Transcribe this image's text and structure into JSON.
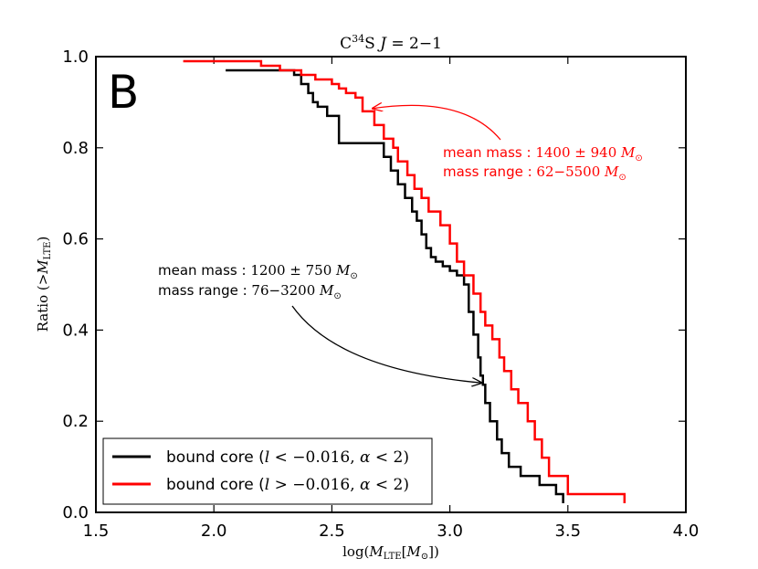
{
  "chart_data": {
    "type": "line",
    "step": true,
    "panel_label": "B",
    "title": {
      "base": "C",
      "sup": "34",
      "rest": "S ",
      "italic": "J",
      "trans": " = 2−1"
    },
    "xlabel": {
      "pre": "log(",
      "M": "M",
      "msub": "LTE",
      "bracket": "[",
      "M2": "M",
      "sun": "⊙",
      "post": "])"
    },
    "ylabel": {
      "pre": "Ratio (>",
      "M": "M",
      "msub": "LTE",
      "post": ")"
    },
    "xlim": [
      1.5,
      4.0
    ],
    "ylim": [
      0.0,
      1.0
    ],
    "xticks": [
      "1.5",
      "2.0",
      "2.5",
      "3.0",
      "3.5",
      "4.0"
    ],
    "yticks": [
      "0.0",
      "0.2",
      "0.4",
      "0.6",
      "0.8",
      "1.0"
    ],
    "series": [
      {
        "name": "bound core (l<−0.016, α<2)",
        "legend": {
          "text": "bound core (",
          "var": "l",
          "cond": " < −0.016, ",
          "var2": "α",
          "cond2": " < 2)"
        },
        "color": "#000000",
        "x": [
          2.05,
          2.34,
          2.37,
          2.4,
          2.42,
          2.44,
          2.48,
          2.53,
          2.72,
          2.75,
          2.78,
          2.81,
          2.84,
          2.86,
          2.88,
          2.9,
          2.92,
          2.94,
          2.97,
          3.0,
          3.03,
          3.06,
          3.08,
          3.1,
          3.12,
          3.13,
          3.14,
          3.15,
          3.17,
          3.2,
          3.22,
          3.25,
          3.3,
          3.38,
          3.45,
          3.48
        ],
        "y": [
          0.97,
          0.96,
          0.94,
          0.92,
          0.9,
          0.89,
          0.87,
          0.81,
          0.78,
          0.75,
          0.72,
          0.69,
          0.66,
          0.64,
          0.61,
          0.58,
          0.56,
          0.55,
          0.54,
          0.53,
          0.52,
          0.5,
          0.44,
          0.39,
          0.34,
          0.3,
          0.28,
          0.24,
          0.2,
          0.16,
          0.13,
          0.1,
          0.08,
          0.06,
          0.04,
          0.02
        ]
      },
      {
        "name": "bound core (l>−0.016, α<2)",
        "legend": {
          "text": "bound core (",
          "var": "l",
          "cond": " > −0.016, ",
          "var2": "α",
          "cond2": " < 2)"
        },
        "color": "#ff0000",
        "x": [
          1.87,
          2.2,
          2.28,
          2.37,
          2.43,
          2.5,
          2.53,
          2.56,
          2.6,
          2.63,
          2.68,
          2.72,
          2.76,
          2.78,
          2.82,
          2.85,
          2.88,
          2.91,
          2.96,
          3.0,
          3.03,
          3.06,
          3.1,
          3.13,
          3.15,
          3.18,
          3.21,
          3.23,
          3.26,
          3.29,
          3.33,
          3.36,
          3.39,
          3.42,
          3.5,
          3.74
        ],
        "y": [
          0.99,
          0.98,
          0.97,
          0.96,
          0.95,
          0.94,
          0.93,
          0.92,
          0.91,
          0.88,
          0.85,
          0.82,
          0.8,
          0.77,
          0.74,
          0.71,
          0.69,
          0.66,
          0.63,
          0.59,
          0.55,
          0.52,
          0.48,
          0.44,
          0.41,
          0.38,
          0.34,
          0.31,
          0.27,
          0.24,
          0.2,
          0.16,
          0.12,
          0.08,
          0.04,
          0.02
        ]
      }
    ],
    "annotations": [
      {
        "color": "#ff0000",
        "line1": {
          "label": "mean mass : ",
          "value": "1400 ± 940 ",
          "M": "M",
          "sun": "⊙"
        },
        "line2": {
          "label": "mass range : ",
          "value": "62−5500 ",
          "M": "M",
          "sun": "⊙"
        },
        "arrow_target": {
          "x": 2.63,
          "y": 0.88
        }
      },
      {
        "color": "#000000",
        "line1": {
          "label": "mean mass : ",
          "value": "1200 ± 750 ",
          "M": "M",
          "sun": "⊙"
        },
        "line2": {
          "label": "mass range : ",
          "value": "76−3200 ",
          "M": "M",
          "sun": "⊙"
        },
        "arrow_target": {
          "x": 3.15,
          "y": 0.29
        }
      }
    ],
    "legend_position": "lower-left"
  }
}
